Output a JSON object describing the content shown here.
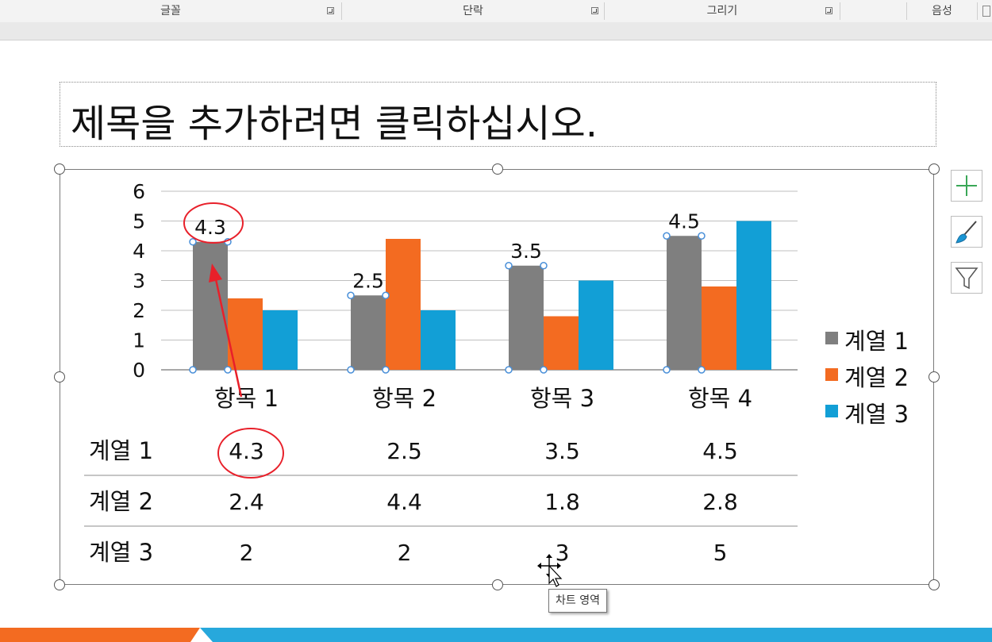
{
  "ribbon": {
    "groups": [
      {
        "label": "글꼴"
      },
      {
        "label": "단락"
      },
      {
        "label": "그리기"
      },
      {
        "label": "음성"
      }
    ]
  },
  "slide": {
    "title_placeholder": "제목을 추가하려면 클릭하십시오."
  },
  "chart_tooltip": "차트 영역",
  "side_buttons": [
    {
      "icon": "plus-icon"
    },
    {
      "icon": "brush-icon"
    },
    {
      "icon": "filter-icon"
    }
  ],
  "colors": {
    "series_1": "#7f7f7f",
    "series_2": "#f36b21",
    "series_3": "#129fd6",
    "annotation": "#e8202a",
    "accent_bar_left": "#f36b21",
    "accent_bar_right": "#27a8dc"
  },
  "chart_data": {
    "type": "bar",
    "categories": [
      "항목 1",
      "항목 2",
      "항목 3",
      "항목 4"
    ],
    "series": [
      {
        "name": "계열 1",
        "values": [
          4.3,
          2.5,
          3.5,
          4.5
        ]
      },
      {
        "name": "계열 2",
        "values": [
          2.4,
          4.4,
          1.8,
          2.8
        ]
      },
      {
        "name": "계열 3",
        "values": [
          2,
          2,
          3,
          5
        ]
      }
    ],
    "y_ticks": [
      "0",
      "1",
      "2",
      "3",
      "4",
      "5",
      "6"
    ],
    "ylim": [
      0,
      6
    ],
    "grid": true,
    "legend_position": "right",
    "data_labels_series": "계열 1",
    "data_table": {
      "rows": [
        {
          "label": "계열 1",
          "values": [
            "4.3",
            "2.5",
            "3.5",
            "4.5"
          ]
        },
        {
          "label": "계열 2",
          "values": [
            "2.4",
            "4.4",
            "1.8",
            "2.8"
          ]
        },
        {
          "label": "계열 3",
          "values": [
            "2",
            "2",
            "3",
            "5"
          ]
        }
      ]
    },
    "annotations": [
      "4.3 data label circled in red",
      "4.3 table value circled in red",
      "arrow pointing to bar"
    ]
  }
}
